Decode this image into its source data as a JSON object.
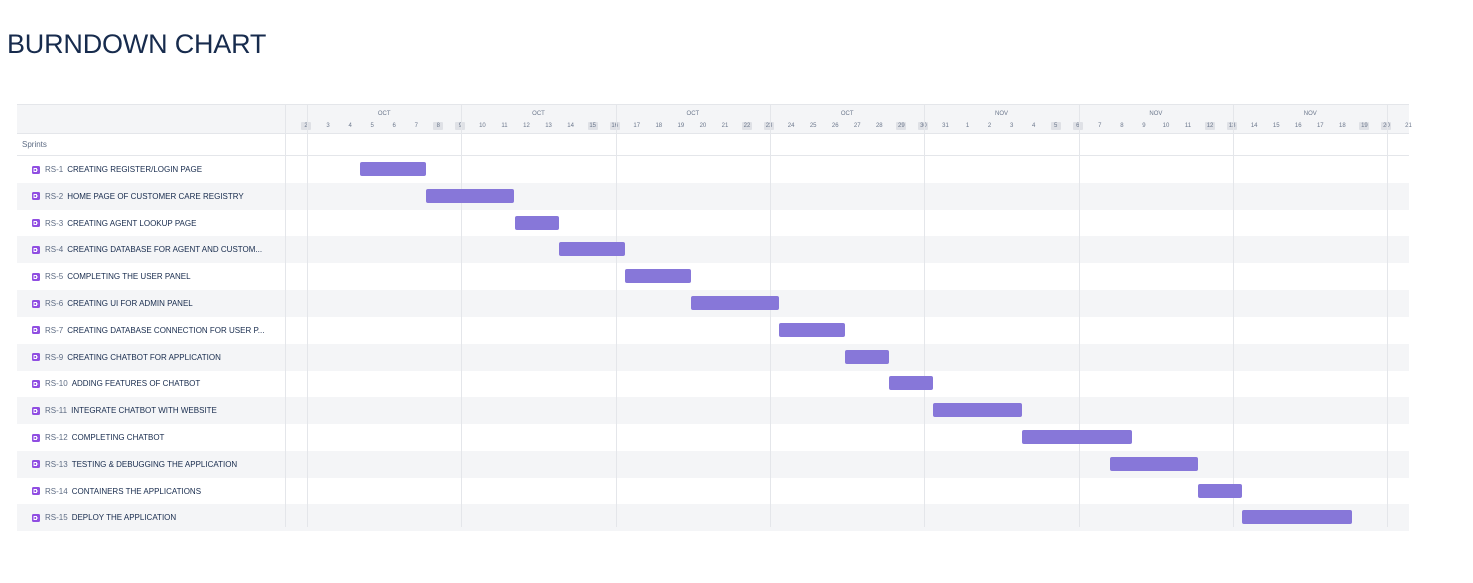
{
  "page": {
    "title": "BURNDOWN CHART"
  },
  "timeline": {
    "group_label": "Sprints",
    "months": [
      {
        "label": "OCT"
      },
      {
        "label": "OCT"
      },
      {
        "label": "OCT"
      },
      {
        "label": "OCT"
      },
      {
        "label": "NOV"
      },
      {
        "label": "NOV"
      },
      {
        "label": "NOV"
      }
    ],
    "days": [
      "2",
      "3",
      "4",
      "5",
      "6",
      "7",
      "8",
      "9",
      "10",
      "11",
      "12",
      "13",
      "14",
      "15",
      "16",
      "17",
      "18",
      "19",
      "20",
      "21",
      "22",
      "23",
      "24",
      "25",
      "26",
      "27",
      "28",
      "29",
      "30",
      "31",
      "1",
      "2",
      "3",
      "4",
      "5",
      "6",
      "7",
      "8",
      "9",
      "10",
      "11",
      "12",
      "13",
      "14",
      "15",
      "16",
      "17",
      "18",
      "19",
      "20",
      "21"
    ],
    "weekend_days": [
      0,
      6,
      7,
      13,
      14,
      20,
      21,
      27,
      28,
      34,
      35,
      41,
      42,
      48,
      49
    ],
    "issues": [
      {
        "key": "RS-1",
        "summary": "CREATING REGISTER/LOGIN PAGE",
        "start_day": 3,
        "end_day": 6
      },
      {
        "key": "RS-2",
        "summary": "HOME PAGE OF CUSTOMER CARE REGISTRY",
        "start_day": 6,
        "end_day": 10
      },
      {
        "key": "RS-3",
        "summary": "CREATING AGENT LOOKUP PAGE",
        "start_day": 10,
        "end_day": 12
      },
      {
        "key": "RS-4",
        "summary": "CREATING DATABASE FOR AGENT AND CUSTOM...",
        "start_day": 12,
        "end_day": 15
      },
      {
        "key": "RS-5",
        "summary": "COMPLETING THE USER PANEL",
        "start_day": 15,
        "end_day": 18
      },
      {
        "key": "RS-6",
        "summary": "CREATING UI FOR ADMIN PANEL",
        "start_day": 18,
        "end_day": 22
      },
      {
        "key": "RS-7",
        "summary": "CREATING DATABASE CONNECTION FOR USER P...",
        "start_day": 22,
        "end_day": 25
      },
      {
        "key": "RS-9",
        "summary": "CREATING CHATBOT FOR APPLICATION",
        "start_day": 25,
        "end_day": 27
      },
      {
        "key": "RS-10",
        "summary": "ADDING FEATURES OF CHATBOT",
        "start_day": 27,
        "end_day": 29
      },
      {
        "key": "RS-11",
        "summary": "INTEGRATE CHATBOT WITH WEBSITE",
        "start_day": 29,
        "end_day": 33
      },
      {
        "key": "RS-12",
        "summary": "COMPLETING CHATBOT",
        "start_day": 33,
        "end_day": 38
      },
      {
        "key": "RS-13",
        "summary": "TESTING & DEBUGGING THE APPLICATION",
        "start_day": 37,
        "end_day": 41
      },
      {
        "key": "RS-14",
        "summary": "CONTAINERS THE APPLICATIONS",
        "start_day": 41,
        "end_day": 43
      },
      {
        "key": "RS-15",
        "summary": "DEPLOY THE APPLICATION",
        "start_day": 43,
        "end_day": 48
      }
    ],
    "colors": {
      "bar": "#8777d9",
      "issue_icon": "#904ee2",
      "weekend_chip": "#dfe1e6",
      "alt_row": "#f4f5f7"
    },
    "icons": {
      "issue_type": "subtask-icon"
    }
  }
}
